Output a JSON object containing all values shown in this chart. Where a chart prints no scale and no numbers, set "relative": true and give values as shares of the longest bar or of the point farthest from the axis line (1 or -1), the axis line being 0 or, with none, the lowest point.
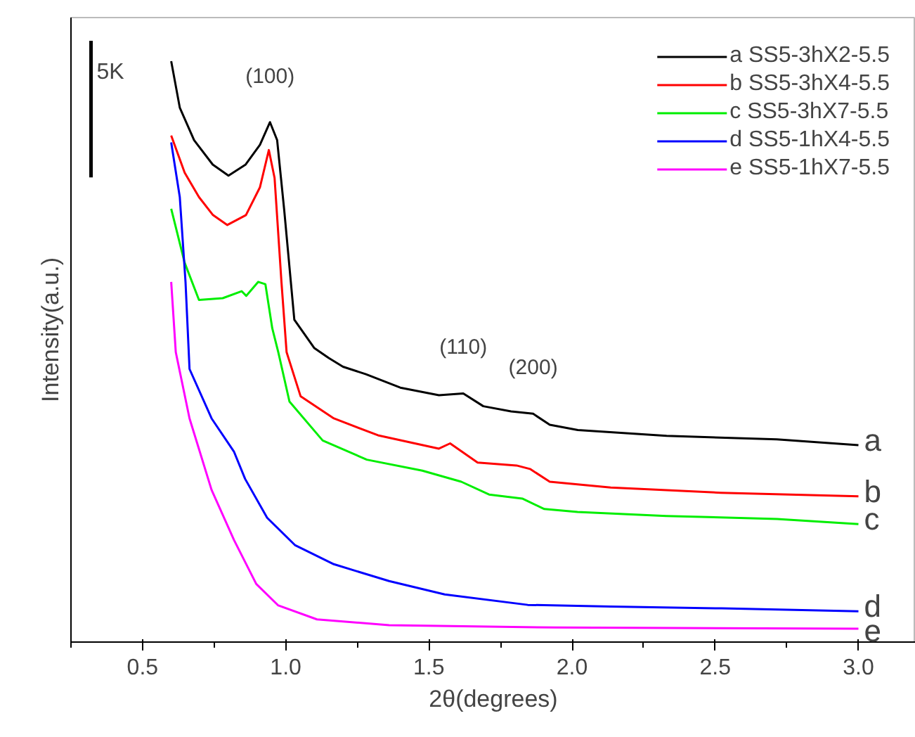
{
  "chart_data": {
    "type": "line",
    "relative": true,
    "xlabel": "2θ(degrees)",
    "ylabel": "Intensity(a.u.)",
    "xlim": [
      0.25,
      3.2
    ],
    "xticks": [
      {
        "value": 0.5,
        "label": "0.5"
      },
      {
        "value": 1.0,
        "label": "1.0"
      },
      {
        "value": 1.5,
        "label": "1.5"
      },
      {
        "value": 2.0,
        "label": "2.0"
      },
      {
        "value": 2.5,
        "label": "2.5"
      },
      {
        "value": 3.0,
        "label": "3.0"
      },
      {
        "value": 0.25,
        "label": null
      },
      {
        "value": 0.75,
        "label": null
      },
      {
        "value": 1.25,
        "label": null
      },
      {
        "value": 1.75,
        "label": null
      },
      {
        "value": 2.25,
        "label": null
      },
      {
        "value": 2.75,
        "label": null
      }
    ],
    "legend": "top right",
    "grid": false,
    "series": [
      {
        "name": "a SS5-3hX2-5.5",
        "color": "#000000",
        "x": [
          0.6,
          0.63,
          0.68,
          0.745,
          0.8,
          0.86,
          0.91,
          0.945,
          0.97,
          0.995,
          1.03,
          1.1,
          1.15,
          1.2,
          1.28,
          1.4,
          1.535,
          1.62,
          1.69,
          1.787,
          1.864,
          1.922,
          2.02,
          2.33,
          2.715,
          3.0
        ],
        "values": [
          1.0,
          0.92,
          0.864,
          0.822,
          0.803,
          0.822,
          0.856,
          0.895,
          0.864,
          0.742,
          0.555,
          0.506,
          0.489,
          0.474,
          0.461,
          0.438,
          0.425,
          0.428,
          0.406,
          0.397,
          0.393,
          0.374,
          0.365,
          0.355,
          0.349,
          0.339
        ]
      },
      {
        "name": "b SS5-3hX4-5.5",
        "color": "#ff0000",
        "x": [
          0.6,
          0.647,
          0.697,
          0.746,
          0.796,
          0.861,
          0.91,
          0.941,
          0.961,
          0.985,
          1.003,
          1.052,
          1.168,
          1.322,
          1.535,
          1.574,
          1.67,
          1.806,
          1.853,
          1.922,
          2.135,
          2.52,
          3.0
        ],
        "values": [
          0.872,
          0.808,
          0.766,
          0.735,
          0.718,
          0.735,
          0.783,
          0.847,
          0.799,
          0.62,
          0.499,
          0.423,
          0.385,
          0.356,
          0.333,
          0.342,
          0.309,
          0.304,
          0.298,
          0.276,
          0.266,
          0.257,
          0.251
        ]
      },
      {
        "name": "c SS5-3hX7-5.5",
        "color": "#00ee00",
        "x": [
          0.6,
          0.647,
          0.697,
          0.78,
          0.846,
          0.862,
          0.904,
          0.929,
          0.953,
          0.974,
          1.013,
          1.129,
          1.283,
          1.477,
          1.613,
          1.71,
          1.826,
          1.903,
          2.019,
          2.329,
          2.716,
          3.0
        ],
        "values": [
          0.746,
          0.653,
          0.589,
          0.592,
          0.604,
          0.596,
          0.62,
          0.616,
          0.54,
          0.499,
          0.414,
          0.347,
          0.314,
          0.295,
          0.276,
          0.254,
          0.247,
          0.229,
          0.224,
          0.217,
          0.212,
          0.203
        ]
      },
      {
        "name": "d SS5-1hX4-5.5",
        "color": "#0000ff",
        "x": [
          0.6,
          0.63,
          0.65,
          0.664,
          0.741,
          0.819,
          0.858,
          0.935,
          1.032,
          1.168,
          1.361,
          1.555,
          1.845,
          2.135,
          2.522,
          3.0
        ],
        "values": [
          0.86,
          0.766,
          0.62,
          0.47,
          0.385,
          0.328,
          0.281,
          0.214,
          0.167,
          0.134,
          0.105,
          0.082,
          0.064,
          0.061,
          0.058,
          0.053
        ]
      },
      {
        "name": "e SS5-1hX7-5.5",
        "color": "#ff00ff",
        "x": [
          0.6,
          0.616,
          0.664,
          0.741,
          0.819,
          0.897,
          0.974,
          1.109,
          1.361,
          1.942,
          3.0
        ],
        "values": [
          0.62,
          0.499,
          0.385,
          0.262,
          0.176,
          0.1,
          0.063,
          0.039,
          0.029,
          0.025,
          0.023
        ]
      }
    ],
    "annotations": [
      "5K",
      {
        "text": "(100)",
        "x": 0.945,
        "y": 0.895
      },
      {
        "text": "(110)",
        "x": 1.62,
        "y": 0.428
      },
      {
        "text": "(200)",
        "x": 1.864,
        "y": 0.393
      },
      {
        "text": "a",
        "x": 3.0,
        "y": 0.339
      },
      {
        "text": "b",
        "x": 3.0,
        "y": 0.251
      },
      {
        "text": "c",
        "x": 3.0,
        "y": 0.203
      },
      {
        "text": "d",
        "x": 3.0,
        "y": 0.053
      },
      {
        "text": "e",
        "x": 3.0,
        "y": 0.023
      }
    ]
  }
}
